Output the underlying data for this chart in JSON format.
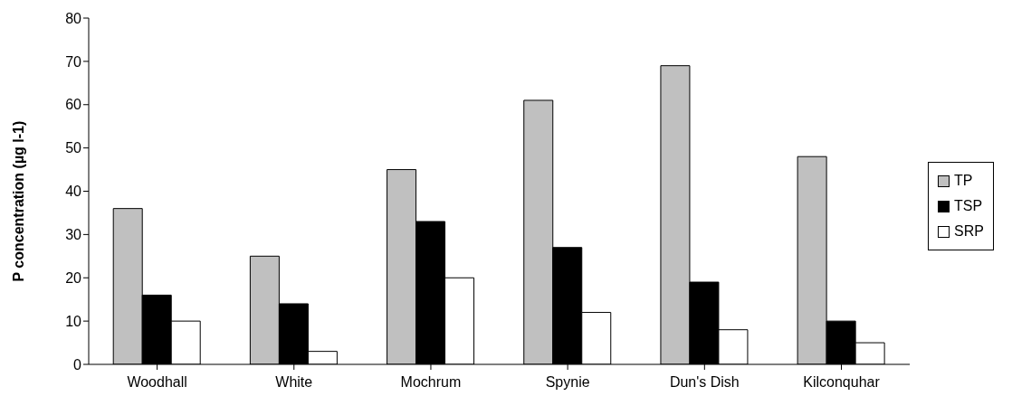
{
  "chart_data": {
    "type": "bar",
    "ylabel": "P concentration (µg l-1)",
    "categories": [
      "Woodhall",
      "White",
      "Mochrum",
      "Spynie",
      "Dun's Dish",
      "Kilconquhar"
    ],
    "series": [
      {
        "name": "TP",
        "color": "#c0c0c0",
        "values": [
          36,
          25,
          45,
          61,
          69,
          48
        ]
      },
      {
        "name": "TSP",
        "color": "#000000",
        "values": [
          16,
          14,
          33,
          27,
          19,
          10
        ]
      },
      {
        "name": "SRP",
        "color": "#ffffff",
        "values": [
          10,
          3,
          20,
          12,
          8,
          5
        ]
      }
    ],
    "ylim": [
      0,
      80
    ],
    "yticks": [
      0,
      10,
      20,
      30,
      40,
      50,
      60,
      70,
      80
    ],
    "grid": false,
    "legend": "right"
  }
}
